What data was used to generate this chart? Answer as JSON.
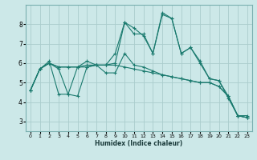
{
  "xlabel": "Humidex (Indice chaleur)",
  "background_color": "#cce8e8",
  "grid_color": "#aacccc",
  "line_color": "#1a7a6e",
  "xlim": [
    -0.5,
    23.5
  ],
  "ylim": [
    2.5,
    9.0
  ],
  "yticks": [
    3,
    4,
    5,
    6,
    7,
    8
  ],
  "xticks": [
    0,
    1,
    2,
    3,
    4,
    5,
    6,
    7,
    8,
    9,
    10,
    11,
    12,
    13,
    14,
    15,
    16,
    17,
    18,
    19,
    20,
    21,
    22,
    23
  ],
  "lines": [
    {
      "x": [
        0,
        1,
        2,
        3,
        4,
        5,
        6,
        7,
        8,
        9,
        10,
        11,
        12,
        13,
        14,
        15,
        16,
        17,
        18,
        19,
        20,
        21,
        22,
        23
      ],
      "y": [
        4.6,
        5.7,
        6.0,
        5.7,
        4.4,
        5.8,
        5.8,
        5.9,
        5.9,
        6.5,
        8.1,
        7.8,
        7.4,
        6.5,
        8.6,
        8.3,
        6.5,
        6.8,
        6.1,
        5.2,
        5.1,
        4.3,
        3.3,
        3.3
      ]
    },
    {
      "x": [
        0,
        1,
        2,
        3,
        4,
        5,
        6,
        7,
        8,
        9,
        10,
        11,
        12,
        13,
        14,
        15,
        16,
        17,
        18,
        19,
        20,
        21,
        22,
        23
      ],
      "y": [
        4.6,
        5.7,
        6.1,
        4.4,
        4.4,
        4.3,
        5.8,
        5.9,
        5.9,
        6.0,
        8.1,
        7.5,
        7.5,
        6.5,
        8.5,
        8.3,
        6.5,
        6.8,
        6.0,
        5.2,
        5.1,
        4.2,
        3.3,
        3.2
      ]
    },
    {
      "x": [
        0,
        1,
        2,
        3,
        4,
        5,
        6,
        7,
        8,
        9,
        10,
        11,
        12,
        13,
        14,
        15,
        16,
        17,
        18,
        19,
        20,
        21,
        22,
        23
      ],
      "y": [
        4.6,
        5.7,
        6.0,
        5.8,
        5.8,
        5.8,
        6.1,
        5.9,
        5.5,
        5.5,
        6.5,
        5.9,
        5.8,
        5.6,
        5.4,
        5.3,
        5.2,
        5.1,
        5.0,
        5.0,
        4.8,
        4.3,
        3.3,
        3.2
      ]
    },
    {
      "x": [
        0,
        1,
        2,
        3,
        4,
        5,
        6,
        7,
        8,
        9,
        10,
        11,
        12,
        13,
        14,
        15,
        16,
        17,
        18,
        19,
        20,
        21,
        22,
        23
      ],
      "y": [
        4.6,
        5.7,
        6.0,
        5.8,
        5.8,
        5.8,
        5.9,
        5.9,
        5.9,
        5.9,
        5.8,
        5.7,
        5.6,
        5.5,
        5.4,
        5.3,
        5.2,
        5.1,
        5.0,
        5.0,
        4.8,
        4.3,
        3.3,
        3.2
      ]
    }
  ]
}
